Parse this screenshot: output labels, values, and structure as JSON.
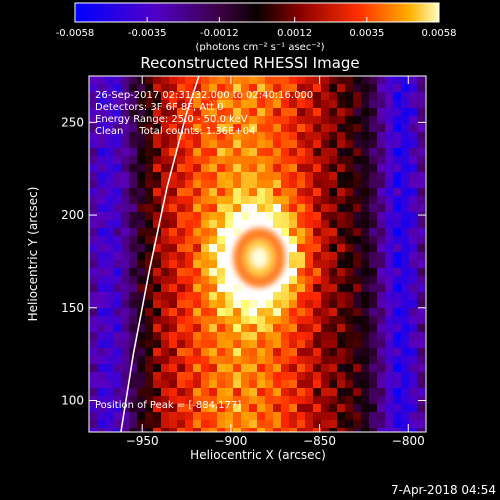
{
  "chart_data": {
    "type": "heatmap",
    "title": "Reconstructed RHESSI Image",
    "xlabel": "Heliocentric X (arcsec)",
    "ylabel": "Heliocentric Y (arcsec)",
    "xlim": [
      -980,
      -790
    ],
    "ylim": [
      83,
      275
    ],
    "xticks": [
      -950,
      -900,
      -850,
      -800
    ],
    "yticks": [
      100,
      150,
      200,
      250
    ],
    "colorbar": {
      "min": -0.0058,
      "max": 0.0058,
      "tick_labels": [
        "-0.0058",
        "-0.0035",
        "-0.0012",
        "0.0012",
        "0.0035",
        "0.0058"
      ],
      "tick_values": [
        -0.0058,
        -0.0035,
        -0.0012,
        0.0012,
        0.0035,
        0.0058
      ],
      "unit_label": "(photons cm⁻² s⁻¹ asec⁻²)"
    },
    "annotations": [
      "26-Sep-2017 02:31:32.000 to 02:40:16.000",
      "Detectors: 3F 6F 8F, Att 0",
      "Energy Range: 25.0 - 50.0 keV",
      "Clean     Total counts: 1.36E+04"
    ],
    "peak_label": "Position of Peak = [-884,177]",
    "peak": [
      -884,
      177
    ],
    "limb_curve": [
      [
        -962,
        83
      ],
      [
        -955,
        125
      ],
      [
        -946,
        170
      ],
      [
        -936,
        215
      ],
      [
        -925,
        255
      ],
      [
        -918,
        275
      ]
    ],
    "footer": "7-Apr-2018 04:54",
    "colors": {
      "limb": "#ffffff",
      "colormap": [
        "#0000ff",
        "#6a00b0",
        "#1a0010",
        "#800000",
        "#ff2000",
        "#ffa000",
        "#ffff80",
        "#ffffff"
      ]
    }
  }
}
